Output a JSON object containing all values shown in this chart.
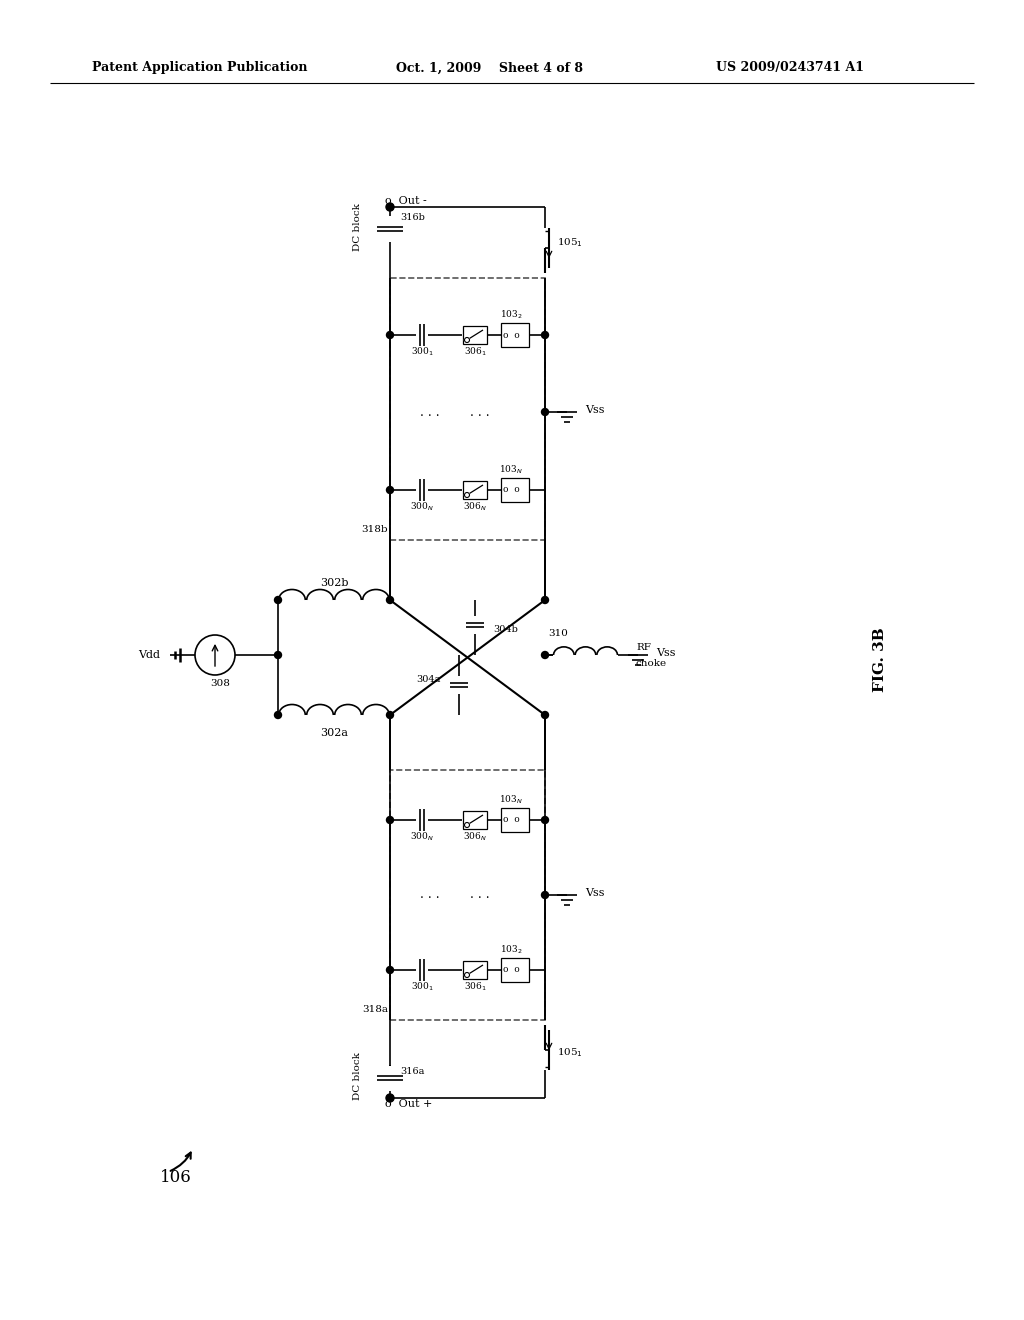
{
  "header_left": "Patent Application Publication",
  "header_center": "Oct. 1, 2009    Sheet 4 of 8",
  "header_right": "US 2009/0243741 A1",
  "fig_label": "FIG. 3B",
  "background_color": "#ffffff"
}
